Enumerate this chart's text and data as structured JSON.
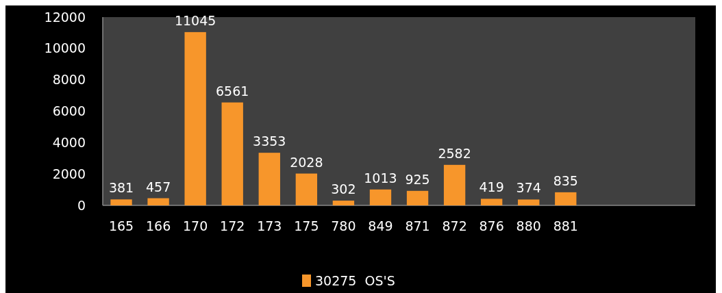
{
  "chart_data": {
    "type": "bar",
    "categories": [
      "165",
      "166",
      "170",
      "172",
      "173",
      "175",
      "780",
      "849",
      "871",
      "872",
      "876",
      "880",
      "881",
      null,
      null,
      null
    ],
    "series": [
      {
        "name": "30275  OS'S",
        "color": "#f7962b",
        "values": [
          381,
          457,
          11045,
          6561,
          3353,
          2028,
          302,
          1013,
          925,
          2582,
          419,
          374,
          835,
          null,
          null,
          null
        ]
      }
    ],
    "ylim": [
      0,
      12000
    ],
    "yticks": [
      0,
      2000,
      4000,
      6000,
      8000,
      10000,
      12000
    ],
    "grid": false,
    "legend": "bottom",
    "data_labels": true
  }
}
